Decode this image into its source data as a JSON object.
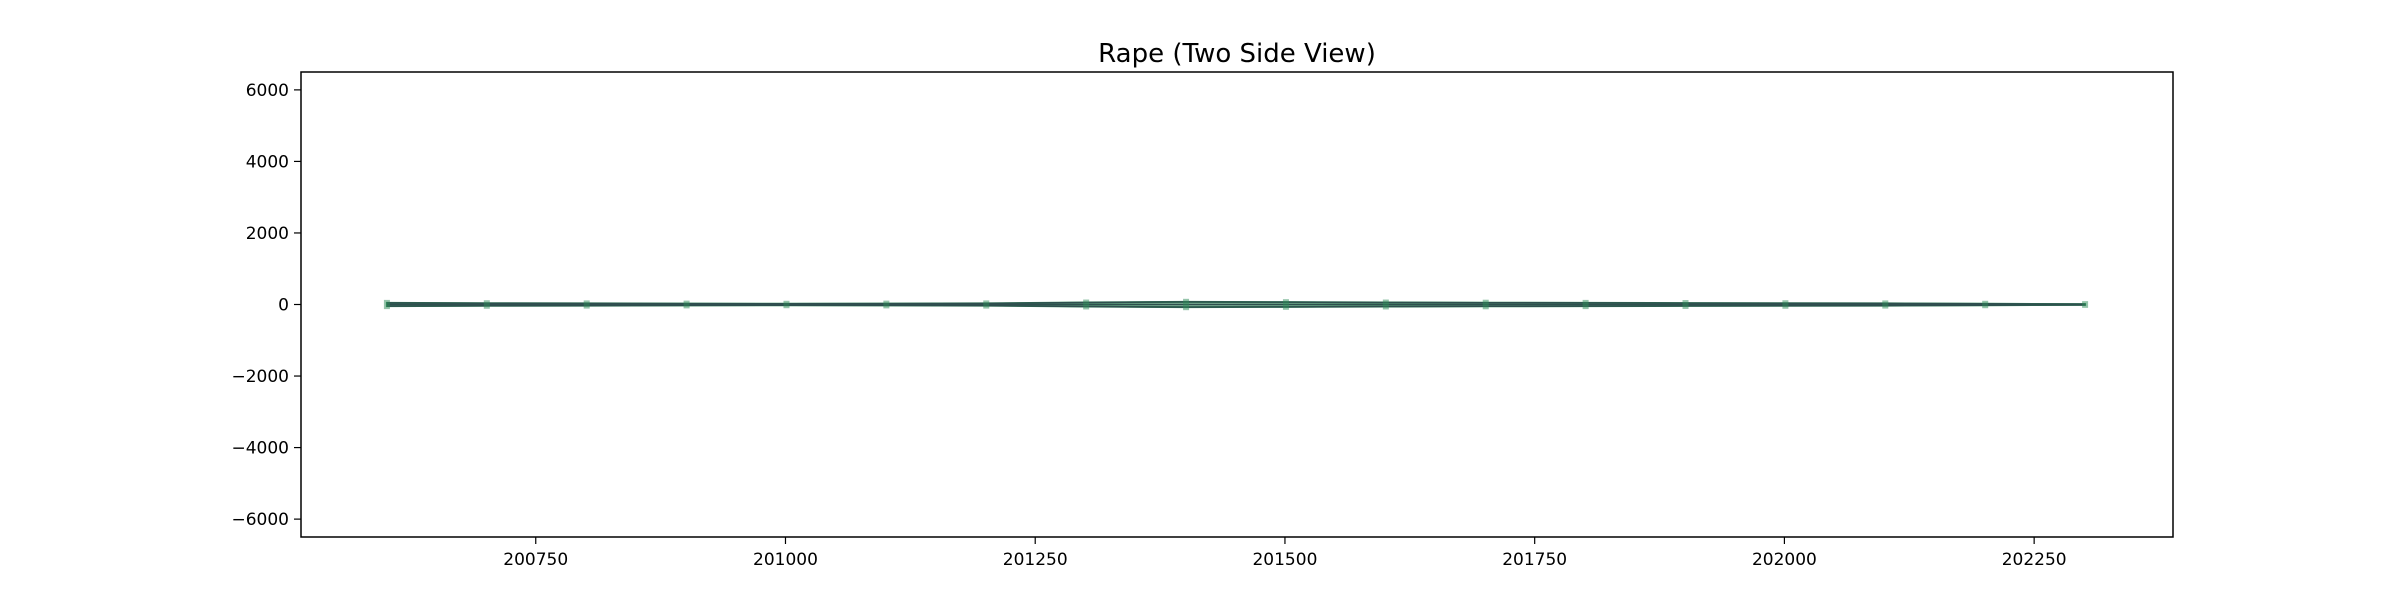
{
  "chart_data": {
    "type": "area",
    "title": "Rape (Two Side View)",
    "xlabel": "",
    "ylabel": "",
    "xlim": [
      200515,
      202389
    ],
    "ylim": [
      -6500,
      6500
    ],
    "x_ticks": [
      200750,
      201000,
      201250,
      201500,
      201750,
      202000,
      202250
    ],
    "y_ticks": [
      6000,
      4000,
      2000,
      0,
      -2000,
      -4000,
      -6000
    ],
    "x_tick_labels": [
      "200750",
      "201000",
      "201250",
      "201500",
      "201750",
      "202000",
      "202250"
    ],
    "y_tick_labels": [
      "6000",
      "4000",
      "2000",
      "0",
      "−2000",
      "−4000",
      "−6000"
    ],
    "grid": false,
    "legend": "none",
    "band_color": "#2e8b57",
    "line_color": "#2f4f4f",
    "x": [
      200601,
      200701,
      200801,
      200901,
      201001,
      201101,
      201201,
      201301,
      201401,
      201501,
      201601,
      201701,
      201801,
      201901,
      202001,
      202101,
      202201,
      202301
    ],
    "upper": [
      45,
      35,
      30,
      25,
      20,
      25,
      30,
      55,
      75,
      65,
      55,
      50,
      45,
      40,
      35,
      30,
      20,
      10
    ],
    "lower": [
      -45,
      -35,
      -30,
      -25,
      -20,
      -25,
      -30,
      -55,
      -75,
      -65,
      -55,
      -50,
      -45,
      -40,
      -35,
      -30,
      -20,
      -10
    ]
  }
}
